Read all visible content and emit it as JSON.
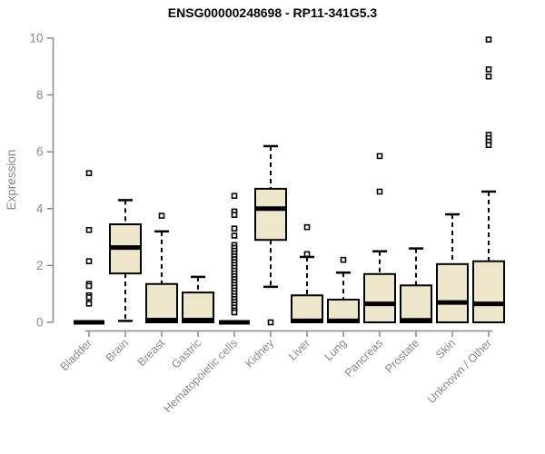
{
  "chart_data": {
    "type": "box",
    "title": "ENSG00000248698 - RP11-341G5.3",
    "xlabel": "",
    "ylabel": "Expression",
    "ylim": [
      0,
      10
    ],
    "yticks": [
      0,
      2,
      4,
      6,
      8,
      10
    ],
    "grid": false,
    "legend": "none",
    "colors": {
      "box_fill": "#ede6cb",
      "box_stroke": "#000000",
      "median": "#000000",
      "axis": "#898989",
      "title": "#000000",
      "outlier_fill": "#ffffff"
    },
    "categories": [
      {
        "label": "Bladder",
        "collapsed": true,
        "q1": 0,
        "median": 0,
        "q3": 0,
        "whisker_low": 0,
        "whisker_high": 0,
        "outliers": [
          5.25,
          3.25,
          2.15,
          1.35,
          1.28,
          0.95,
          0.88,
          0.66
        ]
      },
      {
        "label": "Brain",
        "collapsed": false,
        "q1": 1.72,
        "median": 2.63,
        "q3": 3.45,
        "whisker_low": 0.05,
        "whisker_high": 4.3,
        "outliers": []
      },
      {
        "label": "Breast",
        "collapsed": false,
        "q1": 0,
        "median": 0.08,
        "q3": 1.35,
        "whisker_low": 0,
        "whisker_high": 3.2,
        "outliers": [
          3.75
        ]
      },
      {
        "label": "Gastric",
        "collapsed": false,
        "q1": 0,
        "median": 0.08,
        "q3": 1.05,
        "whisker_low": 0,
        "whisker_high": 1.6,
        "outliers": []
      },
      {
        "label": "Hematopoietic cells",
        "collapsed": true,
        "q1": 0,
        "median": 0,
        "q3": 0,
        "whisker_low": 0,
        "whisker_high": 0,
        "outliers": [
          4.45,
          3.9,
          3.78,
          3.3,
          3.05,
          2.72,
          2.62,
          2.52,
          2.42,
          2.32,
          2.22,
          2.12,
          2.02,
          1.92,
          1.82,
          1.72,
          1.62,
          1.52,
          1.42,
          1.32,
          1.22,
          1.12,
          1.02,
          0.92,
          0.82,
          0.72,
          0.62,
          0.52,
          0.42,
          0.35
        ]
      },
      {
        "label": "Kidney",
        "collapsed": false,
        "q1": 2.9,
        "median": 4.0,
        "q3": 4.7,
        "whisker_low": 1.25,
        "whisker_high": 6.2,
        "outliers": [
          0
        ]
      },
      {
        "label": "Liver",
        "collapsed": false,
        "q1": 0,
        "median": 0.05,
        "q3": 0.95,
        "whisker_low": 0,
        "whisker_high": 2.3,
        "outliers": [
          3.35,
          2.4
        ]
      },
      {
        "label": "Lung",
        "collapsed": false,
        "q1": 0,
        "median": 0.05,
        "q3": 0.8,
        "whisker_low": 0,
        "whisker_high": 1.75,
        "outliers": [
          2.2
        ]
      },
      {
        "label": "Pancreas",
        "collapsed": false,
        "q1": 0,
        "median": 0.65,
        "q3": 1.7,
        "whisker_low": 0,
        "whisker_high": 2.5,
        "outliers": [
          5.85,
          4.6
        ]
      },
      {
        "label": "Prostate",
        "collapsed": false,
        "q1": 0,
        "median": 0.07,
        "q3": 1.3,
        "whisker_low": 0,
        "whisker_high": 2.6,
        "outliers": []
      },
      {
        "label": "Skin",
        "collapsed": false,
        "q1": 0,
        "median": 0.7,
        "q3": 2.05,
        "whisker_low": 0,
        "whisker_high": 3.8,
        "outliers": []
      },
      {
        "label": "Unknown / Other",
        "collapsed": false,
        "q1": 0,
        "median": 0.65,
        "q3": 2.15,
        "whisker_low": 0,
        "whisker_high": 4.6,
        "outliers": [
          9.95,
          8.9,
          8.65,
          6.6,
          6.48,
          6.36,
          6.24
        ]
      }
    ]
  }
}
